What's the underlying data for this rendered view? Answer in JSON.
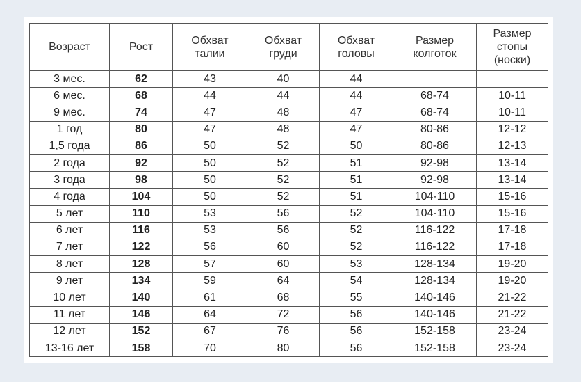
{
  "table": {
    "headers": [
      [
        "Возраст"
      ],
      [
        "Рост"
      ],
      [
        "Обхват",
        "талии"
      ],
      [
        "Обхват",
        "груди"
      ],
      [
        "Обхват",
        "головы"
      ],
      [
        "Размер",
        "колготок"
      ],
      [
        "Размер",
        "стопы",
        "(носки)"
      ]
    ],
    "rows": [
      [
        "3 мес.",
        "62",
        "43",
        "40",
        "44",
        "",
        ""
      ],
      [
        "6 мес.",
        "68",
        "44",
        "44",
        "44",
        "68-74",
        "10-11"
      ],
      [
        "9 мес.",
        "74",
        "47",
        "48",
        "47",
        "68-74",
        "10-11"
      ],
      [
        "1 год",
        "80",
        "47",
        "48",
        "47",
        "80-86",
        "12-12"
      ],
      [
        "1,5 года",
        "86",
        "50",
        "52",
        "50",
        "80-86",
        "12-13"
      ],
      [
        "2 года",
        "92",
        "50",
        "52",
        "51",
        "92-98",
        "13-14"
      ],
      [
        "3 года",
        "98",
        "50",
        "52",
        "51",
        "92-98",
        "13-14"
      ],
      [
        "4 года",
        "104",
        "50",
        "52",
        "51",
        "104-110",
        "15-16"
      ],
      [
        "5 лет",
        "110",
        "53",
        "56",
        "52",
        "104-110",
        "15-16"
      ],
      [
        "6 лет",
        "116",
        "53",
        "56",
        "52",
        "116-122",
        "17-18"
      ],
      [
        "7 лет",
        "122",
        "56",
        "60",
        "52",
        "116-122",
        "17-18"
      ],
      [
        "8 лет",
        "128",
        "57",
        "60",
        "53",
        "128-134",
        "19-20"
      ],
      [
        "9 лет",
        "134",
        "59",
        "64",
        "54",
        "128-134",
        "19-20"
      ],
      [
        "10 лет",
        "140",
        "61",
        "68",
        "55",
        "140-146",
        "21-22"
      ],
      [
        "11 лет",
        "146",
        "64",
        "72",
        "56",
        "140-146",
        "21-22"
      ],
      [
        "12 лет",
        "152",
        "67",
        "76",
        "56",
        "152-158",
        "23-24"
      ],
      [
        "13-16 лет",
        "158",
        "70",
        "80",
        "56",
        "152-158",
        "23-24"
      ]
    ]
  }
}
